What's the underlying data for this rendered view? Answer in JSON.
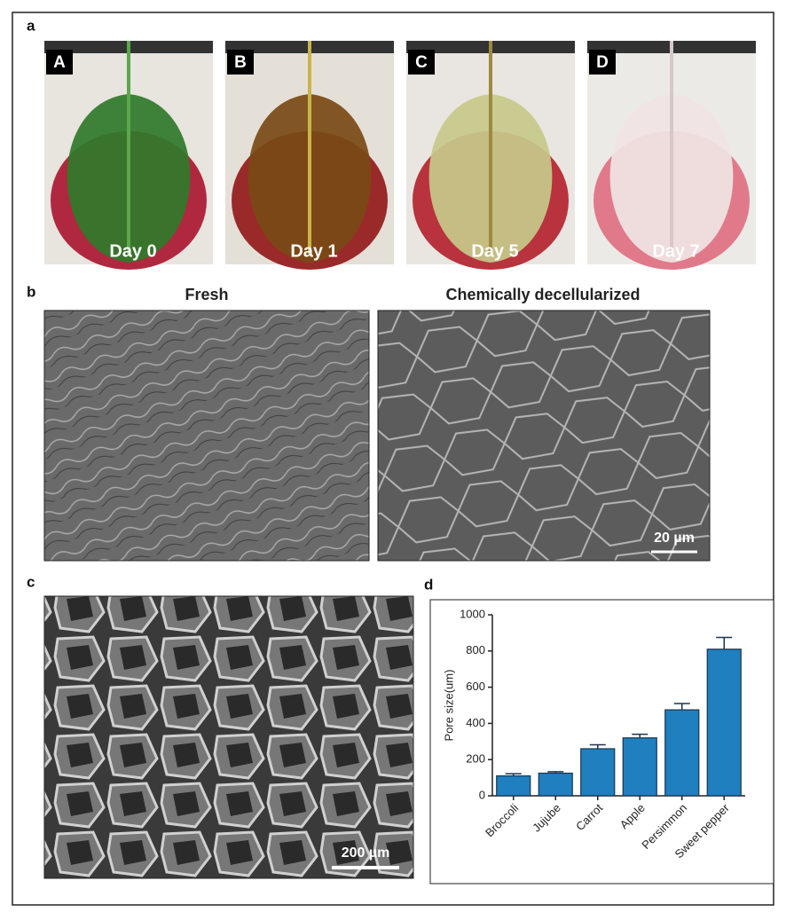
{
  "panels": {
    "a": {
      "label": "a",
      "images": [
        {
          "letter": "A",
          "caption": "Day 0"
        },
        {
          "letter": "B",
          "caption": "Day 1"
        },
        {
          "letter": "C",
          "caption": "Day 5"
        },
        {
          "letter": "D",
          "caption": "Day 7"
        }
      ]
    },
    "b": {
      "label": "b",
      "titles": [
        "Fresh",
        "Chemically decellularized"
      ],
      "scale_bar": "20 µm"
    },
    "c": {
      "label": "c",
      "scale_bar": "200 µm"
    },
    "d": {
      "label": "d"
    }
  },
  "chart_data": {
    "type": "bar",
    "y_label": "Pore size(um)",
    "categories": [
      "Broccoli",
      "Jujube",
      "Carrot",
      "Apple",
      "Persimmon",
      "Sweet pepper"
    ],
    "values": [
      110,
      125,
      260,
      320,
      475,
      810
    ],
    "errors": [
      12,
      8,
      22,
      20,
      35,
      65
    ],
    "color": "#1f7fbf",
    "ylim": [
      0,
      1000
    ],
    "yticks": [
      0,
      200,
      400,
      600,
      800,
      1000
    ]
  }
}
